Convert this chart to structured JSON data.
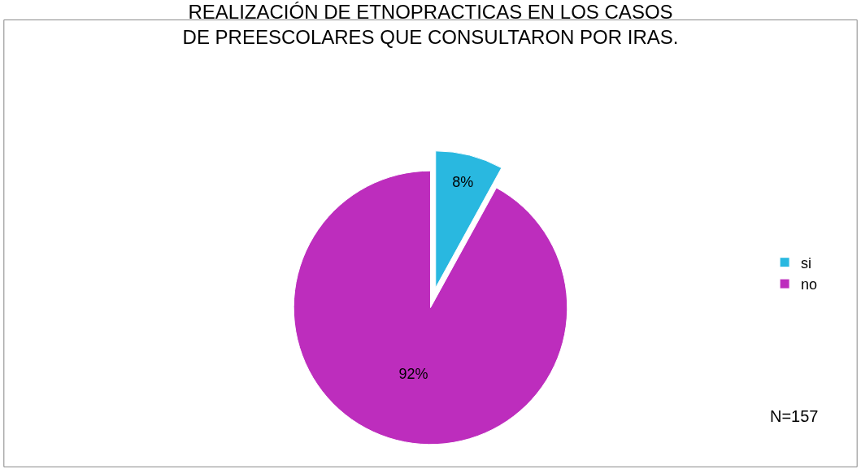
{
  "chart_data": {
    "type": "pie",
    "title": "REALIZACIÓN DE ETNOPRACTICAS EN LOS CASOS DE PREESCOLARES QUE CONSULTARON POR IRAS.",
    "categories": [
      "si",
      "no"
    ],
    "values": [
      8,
      92
    ],
    "value_labels": [
      "8%",
      "92%"
    ],
    "colors": [
      "#29b8e0",
      "#bd2dbd"
    ],
    "legend": "right",
    "annotations": [
      "N=157"
    ]
  }
}
